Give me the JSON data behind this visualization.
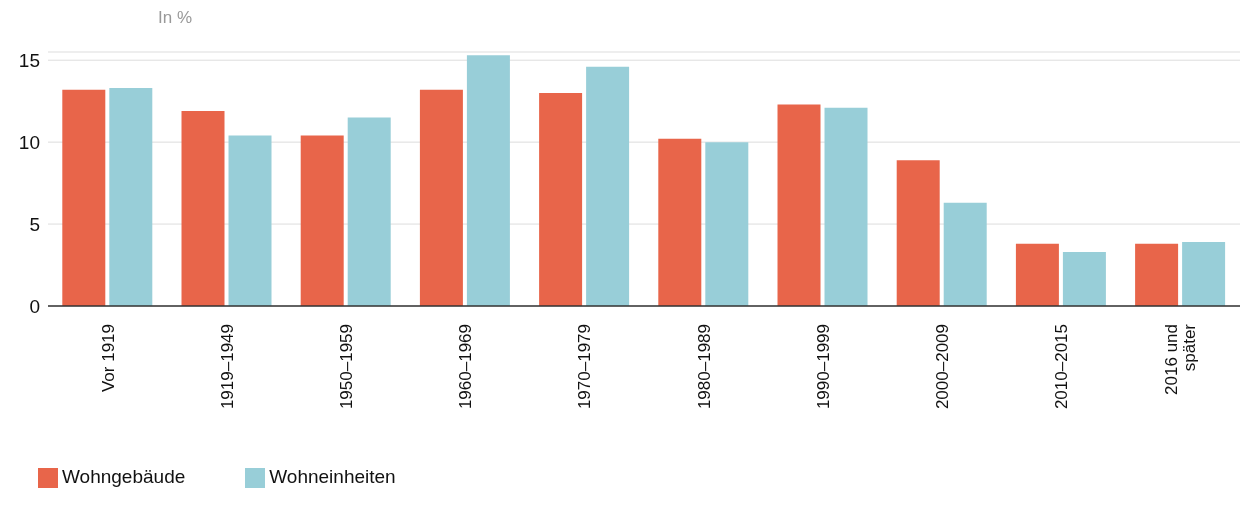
{
  "chart_data": {
    "type": "bar",
    "ylabel": "In %",
    "categories": [
      "Vor 1919",
      "1919–1949",
      "1950–1959",
      "1960–1969",
      "1970–1979",
      "1980–1989",
      "1990–1999",
      "2000–2009",
      "2010–2015",
      "2016 und später"
    ],
    "series": [
      {
        "name": "Wohngebäude",
        "color": "#e8654a",
        "values": [
          13.2,
          11.9,
          10.4,
          13.2,
          13.0,
          10.2,
          12.3,
          8.9,
          3.8,
          3.8
        ]
      },
      {
        "name": "Wohneinheiten",
        "color": "#98ced8",
        "values": [
          13.3,
          10.4,
          11.5,
          15.3,
          14.6,
          10.0,
          12.1,
          6.3,
          3.3,
          3.9
        ]
      }
    ],
    "ylim": [
      0,
      15.5
    ],
    "yticks": [
      0,
      5,
      10,
      15
    ],
    "grid": "y",
    "legend": "bottom left"
  }
}
